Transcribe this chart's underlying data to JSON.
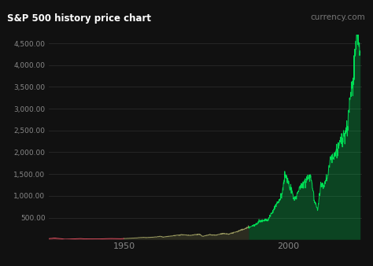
{
  "title": "S&P 500 history price chart",
  "watermark": "currency.com",
  "background_color": "#111111",
  "plot_bg_color": "#111111",
  "grid_color": "#2a2a2a",
  "title_color": "#ffffff",
  "watermark_color": "#777777",
  "ylabel_color": "#888888",
  "xlabel_color": "#888888",
  "ylim": [
    0,
    4700
  ],
  "yticks": [
    500.0,
    1000.0,
    1500.0,
    2000.0,
    2500.0,
    3000.0,
    3500.0,
    4000.0,
    4500.0
  ],
  "color_red": "#e05060",
  "color_olive": "#9b9b60",
  "color_green": "#00dd55",
  "color_transition1_year": 1950,
  "color_transition2_year": 1988,
  "key_years": [
    1927,
    1929,
    1932,
    1937,
    1938,
    1942,
    1943,
    1946,
    1949,
    1950,
    1952,
    1954,
    1956,
    1957,
    1960,
    1961,
    1962,
    1966,
    1968,
    1970,
    1973,
    1974,
    1976,
    1978,
    1980,
    1982,
    1984,
    1987,
    1988,
    1990,
    1991,
    1994,
    1996,
    1998,
    1999,
    2000,
    2001,
    2002,
    2003,
    2004,
    2006,
    2007,
    2008,
    2009,
    2010,
    2011,
    2012,
    2013,
    2015,
    2016,
    2018,
    2019,
    2020,
    2021,
    2022
  ],
  "key_values": [
    17,
    31,
    5,
    18,
    12,
    9,
    12,
    19,
    14,
    20,
    26,
    36,
    47,
    42,
    58,
    72,
    54,
    93,
    108,
    92,
    120,
    68,
    107,
    96,
    136,
    123,
    167,
    247,
    276,
    330,
    417,
    460,
    741,
    970,
    1469,
    1320,
    1148,
    879,
    1112,
    1212,
    1418,
    1468,
    903,
    676,
    1258,
    1258,
    1426,
    1848,
    2044,
    2239,
    2507,
    3231,
    3756,
    4767,
    4300
  ]
}
